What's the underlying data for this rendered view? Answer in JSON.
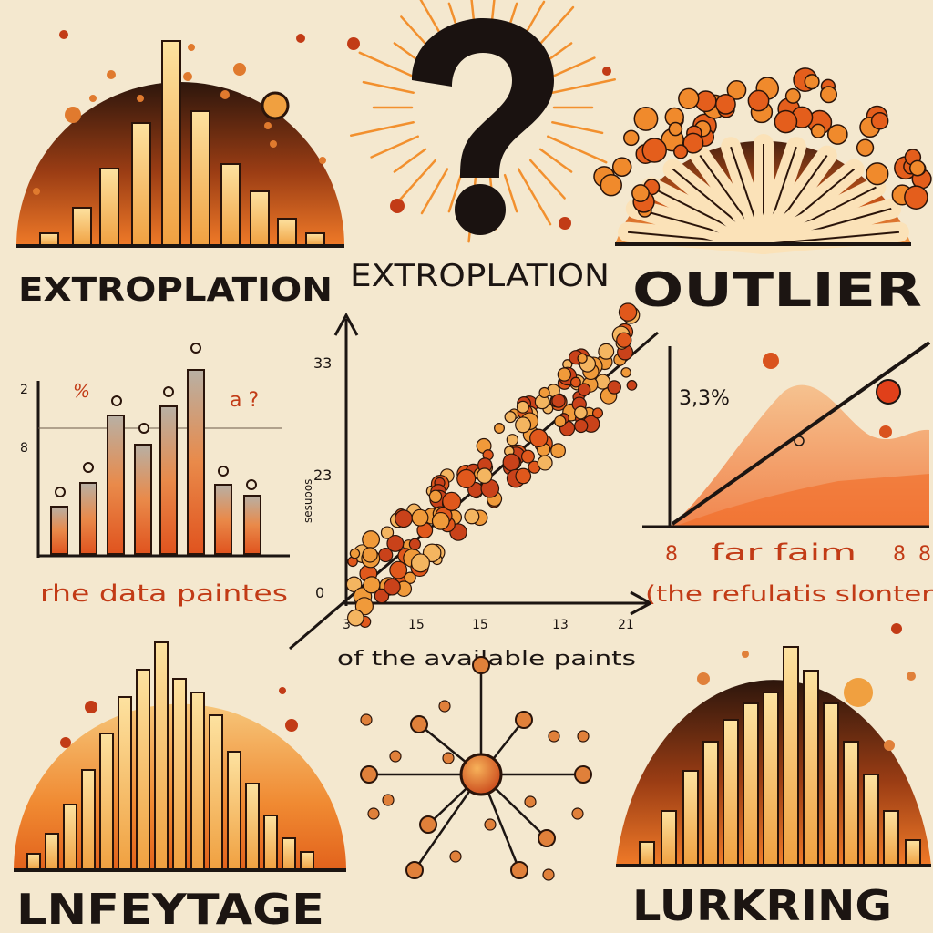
{
  "headings": {
    "top_left": "EXTROPLATION",
    "top_center": "EXTROPLATION",
    "top_right": "OUTLIER",
    "bottom_left": "LNFEYTAGE",
    "bottom_right": "LURKRING"
  },
  "captions": {
    "left_chart": "rhe data paintes",
    "center_chart": "of the available paints",
    "right_chart_top": "far faim",
    "right_chart_bottom": "(the refulatis slonter"
  },
  "scribbles": {
    "left_percent": "%",
    "left_note": "a ?",
    "center_y_axis_title": "sesuoos",
    "right_percent": "3,3%"
  },
  "axis_ticks": {
    "left_y": [
      "2",
      "8"
    ],
    "center_y": [
      "33",
      "23",
      "0"
    ],
    "center_x": [
      "3",
      "15",
      "15",
      "13",
      "21"
    ],
    "right_x": [
      "8",
      "8",
      "8"
    ]
  },
  "colors": {
    "background": "#f4e8cf",
    "dark": "#3a1d10",
    "orange": "#ee7a2a",
    "gold": "#f6c468",
    "red": "#c23b16"
  },
  "icons": [
    "question-mark-icon",
    "sunburst-icon",
    "network-hub-icon"
  ]
}
